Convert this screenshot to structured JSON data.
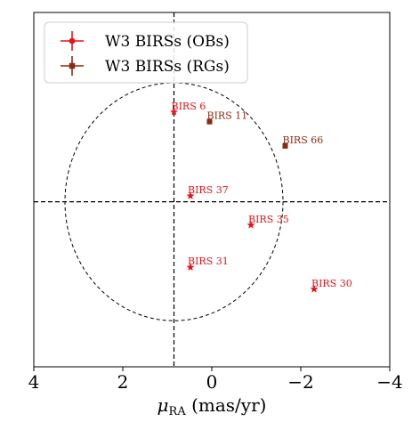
{
  "chart_data": {
    "type": "scatter",
    "xlabel_main": "μ",
    "xlabel_sub": "RA",
    "xlabel_unit": " (mas/yr)",
    "xlim": [
      4,
      -4
    ],
    "ylim": [
      -3.4,
      3.9
    ],
    "grid": false,
    "xticks": [
      4,
      2,
      0,
      -2,
      -4
    ],
    "xtick_labels": [
      "4",
      "2",
      "0",
      "−2",
      "−4"
    ],
    "reference_lines": {
      "x": 0.85,
      "y": 0.0
    },
    "circle": {
      "center": [
        0.85,
        0.0
      ],
      "radius": 2.45
    },
    "legend_position": "top-left",
    "series": [
      {
        "name": "W3 BIRSs (OBs)",
        "color": "#e8141b",
        "marker": "star",
        "points": [
          {
            "label": "BIRS 6",
            "x": 0.85,
            "y": 1.85
          },
          {
            "label": "BIRS 37",
            "x": 0.48,
            "y": 0.12
          },
          {
            "label": "BIRS 35",
            "x": -0.88,
            "y": -0.48
          },
          {
            "label": "BIRS 31",
            "x": 0.48,
            "y": -1.35
          },
          {
            "label": "BIRS 30",
            "x": -2.3,
            "y": -1.8
          }
        ]
      },
      {
        "name": "W3 BIRSs (RGs)",
        "color": "#8b2a10",
        "marker": "square",
        "points": [
          {
            "label": "BIRS 11",
            "x": 0.05,
            "y": 1.65
          },
          {
            "label": "BIRS 66",
            "x": -1.65,
            "y": 1.15
          }
        ]
      }
    ]
  }
}
